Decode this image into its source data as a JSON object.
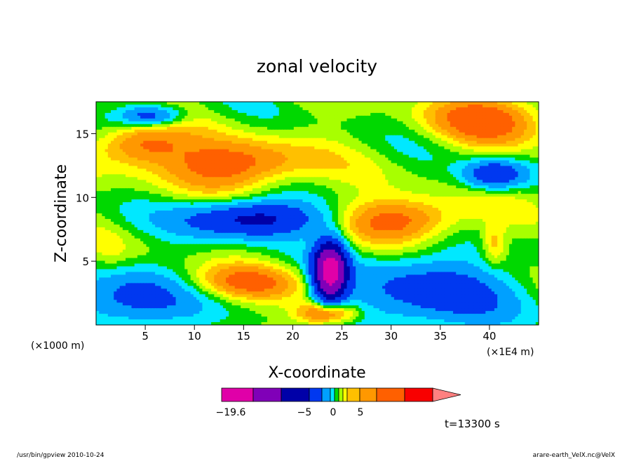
{
  "chart_data": {
    "type": "heatmap",
    "title": "zonal velocity",
    "xlabel": "X-coordinate",
    "ylabel": "Z-coordinate",
    "x_unit_label": "(×1E4 m)",
    "z_unit_label": "(×1000 m)",
    "xlim": [
      0,
      45
    ],
    "ylim": [
      0,
      17.5
    ],
    "x_ticks": [
      5,
      10,
      15,
      20,
      25,
      30,
      35,
      40
    ],
    "y_ticks": [
      5,
      10,
      15
    ],
    "time_label": "t=13300 s",
    "colorbar": {
      "tick_labels": [
        {
          "label": "−19.6",
          "value": -19.6
        },
        {
          "label": "−5",
          "value": -5
        },
        {
          "label": "0",
          "value": 0
        },
        {
          "label": "5",
          "value": 5
        }
      ],
      "colors": [
        "#e000a8",
        "#8000b8",
        "#0000a8",
        "#0038f0",
        "#00a0ff",
        "#00e8ff",
        "#00d800",
        "#a8ff00",
        "#ffff00",
        "#ffc000",
        "#ff9800",
        "#ff6000",
        "#f80000",
        "#ff8080"
      ]
    },
    "features": [
      {
        "name": "upper positive band",
        "cx": 14,
        "cz": 12.6,
        "rx": 7.5,
        "rz": 1.9,
        "value": 3.4
      },
      {
        "name": "upper band west",
        "cx": 4.5,
        "cz": 14.2,
        "rx": 4.5,
        "rz": 1.6,
        "value": 3.0
      },
      {
        "name": "mid east positive band",
        "cx": 31,
        "cz": 8.3,
        "rx": 6.5,
        "rz": 1.7,
        "value": 3.2
      },
      {
        "name": "upper east positive",
        "cx": 40,
        "cz": 16.2,
        "rx": 6.0,
        "rz": 2.0,
        "value": 3.2
      },
      {
        "name": "lower positive band",
        "cx": 15,
        "cz": 3.3,
        "rx": 6.5,
        "rz": 1.4,
        "value": 2.6
      },
      {
        "name": "negative core",
        "cx": 16,
        "cz": 8.3,
        "rx": 7.0,
        "rz": 1.4,
        "value": -5.5
      },
      {
        "name": "lee minimum",
        "cx": 23.8,
        "cz": 4.2,
        "rx": 1.6,
        "rz": 2.2,
        "value": -12.5
      },
      {
        "name": "east negative",
        "cx": 40.5,
        "cz": 11.8,
        "rx": 3.0,
        "rz": 1.1,
        "value": -4.6
      },
      {
        "name": "west bottom negative",
        "cx": 4,
        "cz": 2.0,
        "rx": 6.0,
        "rz": 2.2,
        "value": -3.6
      },
      {
        "name": "east surface negative",
        "cx": 34,
        "cz": 2.5,
        "rx": 9.0,
        "rz": 2.8,
        "value": -3.6
      },
      {
        "name": "west top negative",
        "cx": 5.5,
        "cz": 16.4,
        "rx": 3.2,
        "rz": 0.8,
        "value": -3.8
      },
      {
        "name": "east mid jet",
        "cx": 40.5,
        "cz": 6.3,
        "rx": 1.2,
        "rz": 1.6,
        "value": 1.8
      },
      {
        "name": "west mid jet",
        "cx": 1.6,
        "cz": 5.8,
        "rx": 1.2,
        "rz": 1.5,
        "value": 0.4
      },
      {
        "name": "surface shear layer",
        "cx": 23.5,
        "cz": 0.9,
        "rx": 3.0,
        "rz": 0.9,
        "value": 4.2
      }
    ]
  },
  "footer": {
    "left": "/usr/bin/gpview   2010-10-24",
    "right": "arare-earth_VelX.nc@VelX"
  }
}
